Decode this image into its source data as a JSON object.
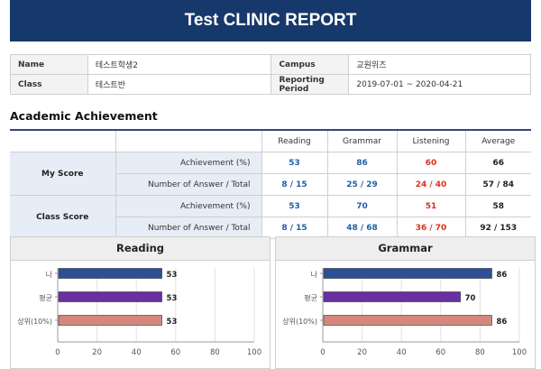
{
  "header": {
    "title": "Test CLINIC REPORT"
  },
  "info": {
    "name_label": "Name",
    "name_value": "테스트학생2",
    "campus_label": "Campus",
    "campus_value": "교원위즈",
    "class_label": "Class",
    "class_value": "테스트반",
    "period_label": "Reporting Period",
    "period_value": "2019-07-01 ~ 2020-04-21"
  },
  "achievement": {
    "title": "Academic Achievement",
    "columns": [
      "Reading",
      "Grammar",
      "Listening",
      "Average"
    ],
    "groups": [
      {
        "label": "My Score",
        "rows": [
          {
            "label": "Achievement (%)",
            "cells": [
              "53",
              "86",
              "60",
              "66"
            ]
          },
          {
            "label": "Number of Answer / Total",
            "cells": [
              "8 / 15",
              "25 / 29",
              "24 / 40",
              "57 / 84"
            ]
          }
        ]
      },
      {
        "label": "Class Score",
        "rows": [
          {
            "label": "Achievement (%)",
            "cells": [
              "53",
              "70",
              "51",
              "58"
            ]
          },
          {
            "label": "Number of Answer / Total",
            "cells": [
              "8 / 15",
              "48 / 68",
              "36 / 70",
              "92 / 153"
            ]
          }
        ]
      }
    ],
    "colors": {
      "reading": "#1f5fa8",
      "grammar": "#1f5fa8",
      "listening": "#d9301c",
      "average": "#222222"
    }
  },
  "chart_data": [
    {
      "type": "bar",
      "orientation": "horizontal",
      "title": "Reading",
      "categories": [
        "나",
        "평균",
        "상위(10%)"
      ],
      "values": [
        53,
        53,
        53
      ],
      "colors": [
        "#2f4f94",
        "#6a2fa0",
        "#d4877f"
      ],
      "xlim": [
        0,
        100
      ],
      "xticks": [
        0,
        20,
        40,
        60,
        80,
        100
      ],
      "grid": true
    },
    {
      "type": "bar",
      "orientation": "horizontal",
      "title": "Grammar",
      "categories": [
        "나",
        "평균",
        "상위(10%)"
      ],
      "values": [
        86,
        70,
        86
      ],
      "colors": [
        "#2f4f94",
        "#6a2fa0",
        "#d4877f"
      ],
      "xlim": [
        0,
        100
      ],
      "xticks": [
        0,
        20,
        40,
        60,
        80,
        100
      ],
      "grid": true
    }
  ]
}
